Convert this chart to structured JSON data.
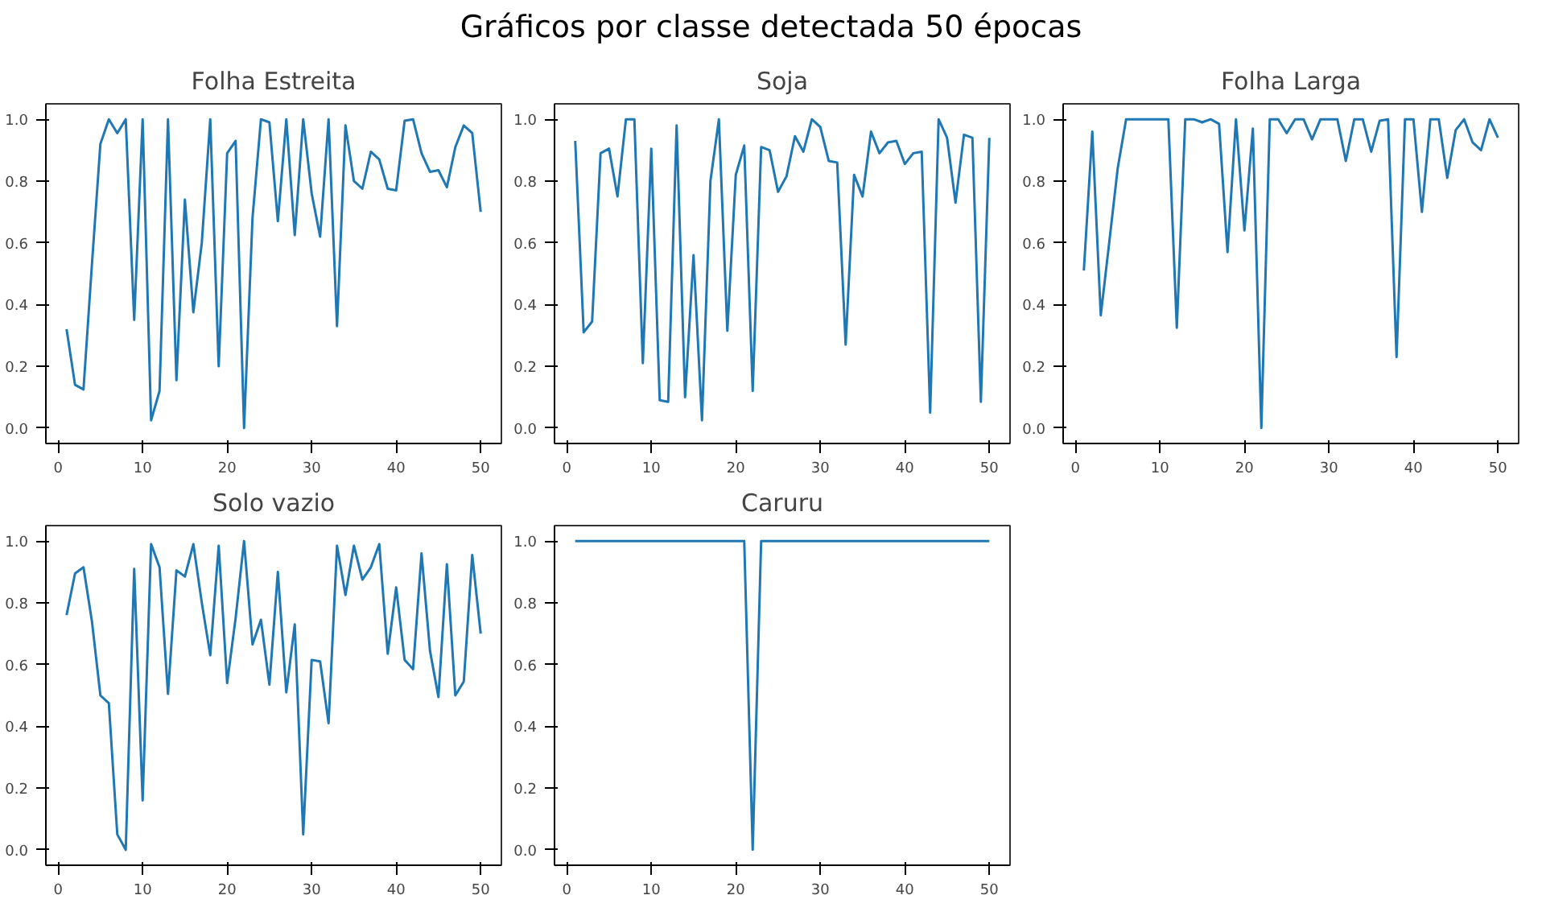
{
  "chart_data": [
    {
      "type": "other",
      "title": "Gráficos por classe detectada 50 épocas"
    },
    {
      "type": "line",
      "title": "Folha Estreita",
      "x": [
        1,
        2,
        3,
        4,
        5,
        6,
        7,
        8,
        9,
        10,
        11,
        12,
        13,
        14,
        15,
        16,
        17,
        18,
        19,
        20,
        21,
        22,
        23,
        24,
        25,
        26,
        27,
        28,
        29,
        30,
        31,
        32,
        33,
        34,
        35,
        36,
        37,
        38,
        39,
        40,
        41,
        42,
        43,
        44,
        45,
        46,
        47,
        48,
        49,
        50
      ],
      "series": [
        {
          "color": "#1f77b4",
          "values": [
            0.32,
            0.14,
            0.125,
            0.53,
            0.92,
            1.0,
            0.955,
            1.0,
            0.35,
            1.0,
            0.025,
            0.12,
            1.0,
            0.155,
            0.74,
            0.375,
            0.6,
            1.0,
            0.2,
            0.89,
            0.93,
            0.0,
            0.68,
            1.0,
            0.99,
            0.67,
            1.0,
            0.625,
            1.0,
            0.76,
            0.62,
            1.0,
            0.33,
            0.98,
            0.8,
            0.775,
            0.895,
            0.87,
            0.775,
            0.77,
            0.995,
            1.0,
            0.89,
            0.83,
            0.835,
            0.78,
            0.91,
            0.98,
            0.955,
            0.7
          ]
        }
      ],
      "xlim": [
        -1.45,
        52.45
      ],
      "ylim": [
        -0.05,
        1.05
      ],
      "xticks": [
        0,
        10,
        20,
        30,
        40,
        50
      ],
      "yticks": [
        {
          "value": 0,
          "label": "0.0"
        },
        {
          "value": 0.2,
          "label": "0.2"
        },
        {
          "value": 0.4,
          "label": "0.4"
        },
        {
          "value": 0.6,
          "label": "0.6"
        },
        {
          "value": 0.8,
          "label": "0.8"
        },
        {
          "value": 1,
          "label": "1.0"
        }
      ],
      "grid": false
    },
    {
      "type": "line",
      "title": "Soja",
      "x": [
        1,
        2,
        3,
        4,
        5,
        6,
        7,
        8,
        9,
        10,
        11,
        12,
        13,
        14,
        15,
        16,
        17,
        18,
        19,
        20,
        21,
        22,
        23,
        24,
        25,
        26,
        27,
        28,
        29,
        30,
        31,
        32,
        33,
        34,
        35,
        36,
        37,
        38,
        39,
        40,
        41,
        42,
        43,
        44,
        45,
        46,
        47,
        48,
        49,
        50
      ],
      "series": [
        {
          "color": "#1f77b4",
          "values": [
            0.93,
            0.31,
            0.345,
            0.89,
            0.905,
            0.75,
            1.0,
            1.0,
            0.21,
            0.905,
            0.09,
            0.085,
            0.98,
            0.1,
            0.56,
            0.025,
            0.8,
            1.0,
            0.315,
            0.82,
            0.915,
            0.12,
            0.91,
            0.9,
            0.765,
            0.815,
            0.945,
            0.895,
            1.0,
            0.975,
            0.865,
            0.86,
            0.27,
            0.82,
            0.75,
            0.96,
            0.89,
            0.925,
            0.93,
            0.855,
            0.89,
            0.895,
            0.05,
            1.0,
            0.94,
            0.73,
            0.95,
            0.94,
            0.085,
            0.94
          ]
        }
      ],
      "xlim": [
        -1.45,
        52.45
      ],
      "ylim": [
        -0.05,
        1.05
      ],
      "xticks": [
        0,
        10,
        20,
        30,
        40,
        50
      ],
      "yticks": [
        {
          "value": 0,
          "label": "0.0"
        },
        {
          "value": 0.2,
          "label": "0.2"
        },
        {
          "value": 0.4,
          "label": "0.4"
        },
        {
          "value": 0.6,
          "label": "0.6"
        },
        {
          "value": 0.8,
          "label": "0.8"
        },
        {
          "value": 1,
          "label": "1.0"
        }
      ],
      "grid": false
    },
    {
      "type": "line",
      "title": "Folha Larga",
      "x": [
        1,
        2,
        3,
        4,
        5,
        6,
        7,
        8,
        9,
        10,
        11,
        12,
        13,
        14,
        15,
        16,
        17,
        18,
        19,
        20,
        21,
        22,
        23,
        24,
        25,
        26,
        27,
        28,
        29,
        30,
        31,
        32,
        33,
        34,
        35,
        36,
        37,
        38,
        39,
        40,
        41,
        42,
        43,
        44,
        45,
        46,
        47,
        48,
        49,
        50
      ],
      "series": [
        {
          "color": "#1f77b4",
          "values": [
            0.51,
            0.96,
            0.365,
            0.6,
            0.84,
            1.0,
            1.0,
            1.0,
            1.0,
            1.0,
            1.0,
            0.325,
            1.0,
            1.0,
            0.99,
            1.0,
            0.985,
            0.57,
            1.0,
            0.64,
            0.97,
            0.0,
            1.0,
            1.0,
            0.955,
            1.0,
            1.0,
            0.935,
            1.0,
            1.0,
            1.0,
            0.865,
            1.0,
            1.0,
            0.895,
            0.995,
            1.0,
            0.23,
            1.0,
            1.0,
            0.7,
            1.0,
            1.0,
            0.81,
            0.965,
            1.0,
            0.925,
            0.9,
            1.0,
            0.94
          ]
        }
      ],
      "xlim": [
        -1.45,
        52.45
      ],
      "ylim": [
        -0.05,
        1.05
      ],
      "xticks": [
        0,
        10,
        20,
        30,
        40,
        50
      ],
      "yticks": [
        {
          "value": 0,
          "label": "0.0"
        },
        {
          "value": 0.2,
          "label": "0.2"
        },
        {
          "value": 0.4,
          "label": "0.4"
        },
        {
          "value": 0.6,
          "label": "0.6"
        },
        {
          "value": 0.8,
          "label": "0.8"
        },
        {
          "value": 1,
          "label": "1.0"
        }
      ],
      "grid": false
    },
    {
      "type": "line",
      "title": "Solo vazio",
      "x": [
        1,
        2,
        3,
        4,
        5,
        6,
        7,
        8,
        9,
        10,
        11,
        12,
        13,
        14,
        15,
        16,
        17,
        18,
        19,
        20,
        21,
        22,
        23,
        24,
        25,
        26,
        27,
        28,
        29,
        30,
        31,
        32,
        33,
        34,
        35,
        36,
        37,
        38,
        39,
        40,
        41,
        42,
        43,
        44,
        45,
        46,
        47,
        48,
        49,
        50
      ],
      "series": [
        {
          "color": "#1f77b4",
          "values": [
            0.76,
            0.895,
            0.915,
            0.74,
            0.5,
            0.475,
            0.05,
            0.0,
            0.91,
            0.16,
            0.99,
            0.915,
            0.505,
            0.905,
            0.885,
            0.99,
            0.8,
            0.63,
            0.985,
            0.54,
            0.75,
            1.0,
            0.665,
            0.745,
            0.535,
            0.9,
            0.51,
            0.73,
            0.05,
            0.615,
            0.61,
            0.41,
            0.985,
            0.825,
            0.985,
            0.875,
            0.915,
            0.99,
            0.635,
            0.85,
            0.615,
            0.585,
            0.96,
            0.645,
            0.495,
            0.925,
            0.5,
            0.545,
            0.955,
            0.7
          ]
        }
      ],
      "xlim": [
        -1.45,
        52.45
      ],
      "ylim": [
        -0.05,
        1.05
      ],
      "xticks": [
        0,
        10,
        20,
        30,
        40,
        50
      ],
      "yticks": [
        {
          "value": 0,
          "label": "0.0"
        },
        {
          "value": 0.2,
          "label": "0.2"
        },
        {
          "value": 0.4,
          "label": "0.4"
        },
        {
          "value": 0.6,
          "label": "0.6"
        },
        {
          "value": 0.8,
          "label": "0.8"
        },
        {
          "value": 1,
          "label": "1.0"
        }
      ],
      "grid": false
    },
    {
      "type": "line",
      "title": "Caruru",
      "x": [
        1,
        2,
        3,
        4,
        5,
        6,
        7,
        8,
        9,
        10,
        11,
        12,
        13,
        14,
        15,
        16,
        17,
        18,
        19,
        20,
        21,
        22,
        23,
        24,
        25,
        26,
        27,
        28,
        29,
        30,
        31,
        32,
        33,
        34,
        35,
        36,
        37,
        38,
        39,
        40,
        41,
        42,
        43,
        44,
        45,
        46,
        47,
        48,
        49,
        50
      ],
      "series": [
        {
          "color": "#1f77b4",
          "values": [
            1,
            1,
            1,
            1,
            1,
            1,
            1,
            1,
            1,
            1,
            1,
            1,
            1,
            1,
            1,
            1,
            1,
            1,
            1,
            1,
            1,
            0,
            1,
            1,
            1,
            1,
            1,
            1,
            1,
            1,
            1,
            1,
            1,
            1,
            1,
            1,
            1,
            1,
            1,
            1,
            1,
            1,
            1,
            1,
            1,
            1,
            1,
            1,
            1,
            1
          ]
        }
      ],
      "xlim": [
        -1.45,
        52.45
      ],
      "ylim": [
        -0.05,
        1.05
      ],
      "xticks": [
        0,
        10,
        20,
        30,
        40,
        50
      ],
      "yticks": [
        {
          "value": 0,
          "label": "0.0"
        },
        {
          "value": 0.2,
          "label": "0.2"
        },
        {
          "value": 0.4,
          "label": "0.4"
        },
        {
          "value": 0.6,
          "label": "0.6"
        },
        {
          "value": 0.8,
          "label": "0.8"
        },
        {
          "value": 1,
          "label": "1.0"
        }
      ],
      "grid": false
    }
  ]
}
